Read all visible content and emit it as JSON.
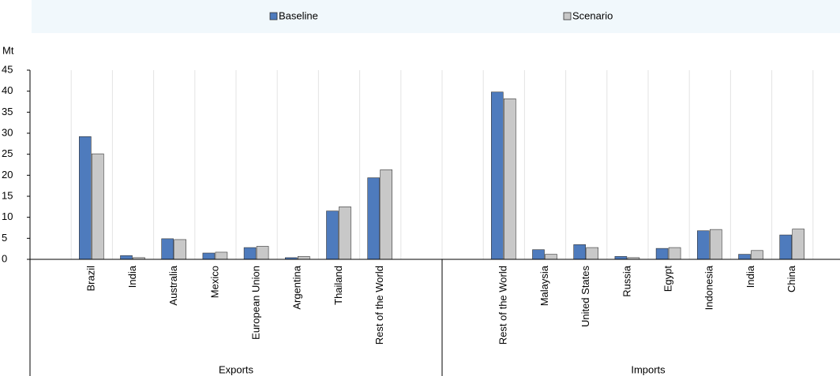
{
  "chart_data": {
    "type": "bar",
    "unit": "Mt",
    "groups": [
      "Exports",
      "Imports"
    ],
    "categories": [
      null,
      "Brazil",
      "India",
      "Australia",
      "Mexico",
      "European Union",
      "Argentina",
      "Thailand",
      "Rest of the World",
      null,
      null,
      "Rest of the World",
      "Malaysia",
      "United States",
      "Russia",
      "Egypt",
      "Indonesia",
      "India",
      "China",
      null
    ],
    "series": [
      {
        "name": "Baseline",
        "color": "#4e7bbd",
        "values": [
          null,
          29.2,
          0.9,
          4.9,
          1.5,
          2.8,
          0.4,
          11.5,
          19.4,
          null,
          null,
          39.8,
          2.3,
          3.5,
          0.7,
          2.6,
          6.8,
          1.2,
          5.8,
          null
        ]
      },
      {
        "name": "Scenario",
        "color": "#c8c8c8",
        "values": [
          null,
          25.1,
          0.4,
          4.7,
          1.7,
          3.1,
          0.7,
          12.5,
          21.3,
          null,
          null,
          38.2,
          1.2,
          2.8,
          0.4,
          2.8,
          7.1,
          2.1,
          7.2,
          null
        ]
      }
    ],
    "ylim": [
      0,
      45
    ],
    "yticks": [
      0,
      5,
      10,
      15,
      20,
      25,
      30,
      35,
      40,
      45
    ]
  }
}
